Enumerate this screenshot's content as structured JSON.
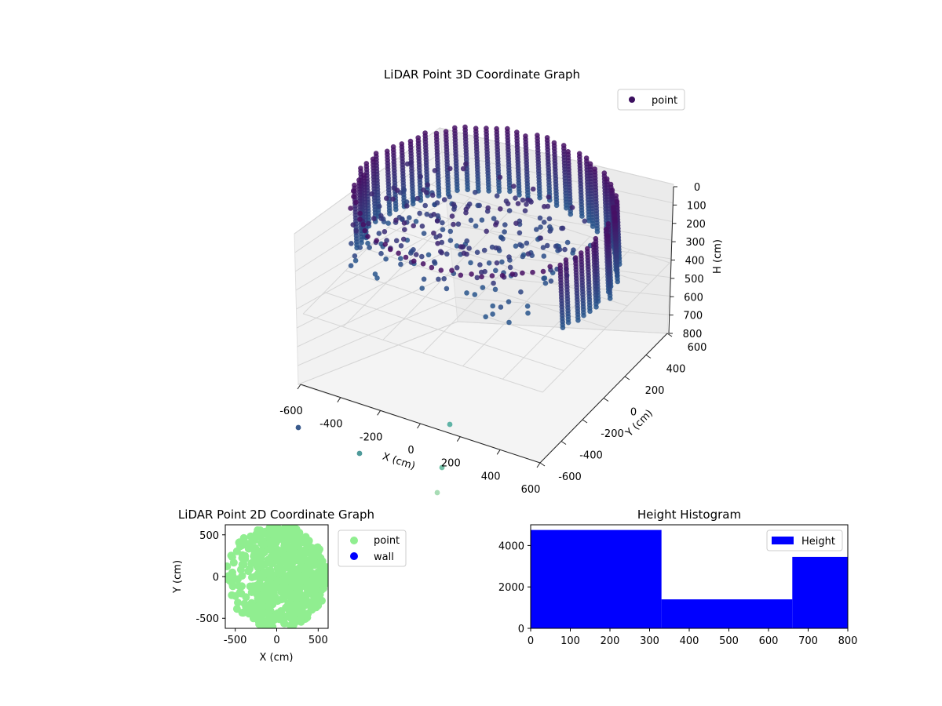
{
  "chart_data": [
    {
      "type": "scatter3d",
      "title": "LiDAR Point 3D Coordinate Graph",
      "xlabel": "X (cm)",
      "ylabel": "Y (cm)",
      "zlabel": "H (cm)",
      "xticks": [
        -600,
        -400,
        -200,
        0,
        200,
        400,
        600
      ],
      "yticks": [
        -600,
        -400,
        -200,
        0,
        200,
        400,
        600
      ],
      "zticks": [
        0,
        100,
        200,
        300,
        400,
        500,
        600,
        700,
        800
      ],
      "xlim": [
        -600,
        600
      ],
      "ylim": [
        -600,
        600
      ],
      "zlim": [
        800,
        0
      ],
      "zlim_note": "H axis inverted (0 at top)",
      "legend": {
        "entries": [
          "point"
        ],
        "location": "upper right"
      },
      "series": [
        {
          "name": "point",
          "shape": "cylindrical wall, radius ~600 cm, plus scattered interior points"
        }
      ]
    },
    {
      "type": "scatter",
      "title": "LiDAR Point 2D Coordinate Graph",
      "xlabel": "X (cm)",
      "ylabel": "Y (cm)",
      "xticks": [
        -500,
        0,
        500
      ],
      "yticks": [
        -500,
        0,
        500
      ],
      "xlim": [
        -620,
        620
      ],
      "ylim": [
        -620,
        620
      ],
      "legend": {
        "entries": [
          "point",
          "wall"
        ],
        "location": "outside right"
      },
      "series": [
        {
          "name": "point",
          "color": "#90ee90"
        },
        {
          "name": "wall",
          "color": "#0000ff"
        }
      ]
    },
    {
      "type": "bar",
      "subtype": "histogram",
      "title": "Height Histogram",
      "xticks": [
        0,
        100,
        200,
        300,
        400,
        500,
        600,
        700,
        800
      ],
      "yticks": [
        0,
        2000,
        4000
      ],
      "xlim": [
        0,
        800
      ],
      "ylim": [
        0,
        5000
      ],
      "bins": [
        [
          0,
          330
        ],
        [
          330,
          660
        ],
        [
          660,
          800
        ]
      ],
      "values": [
        4750,
        1400,
        3450
      ],
      "legend": {
        "entries": [
          "Height"
        ],
        "location": "upper right"
      },
      "series": [
        {
          "name": "Height",
          "color": "#0000ff"
        }
      ]
    }
  ]
}
